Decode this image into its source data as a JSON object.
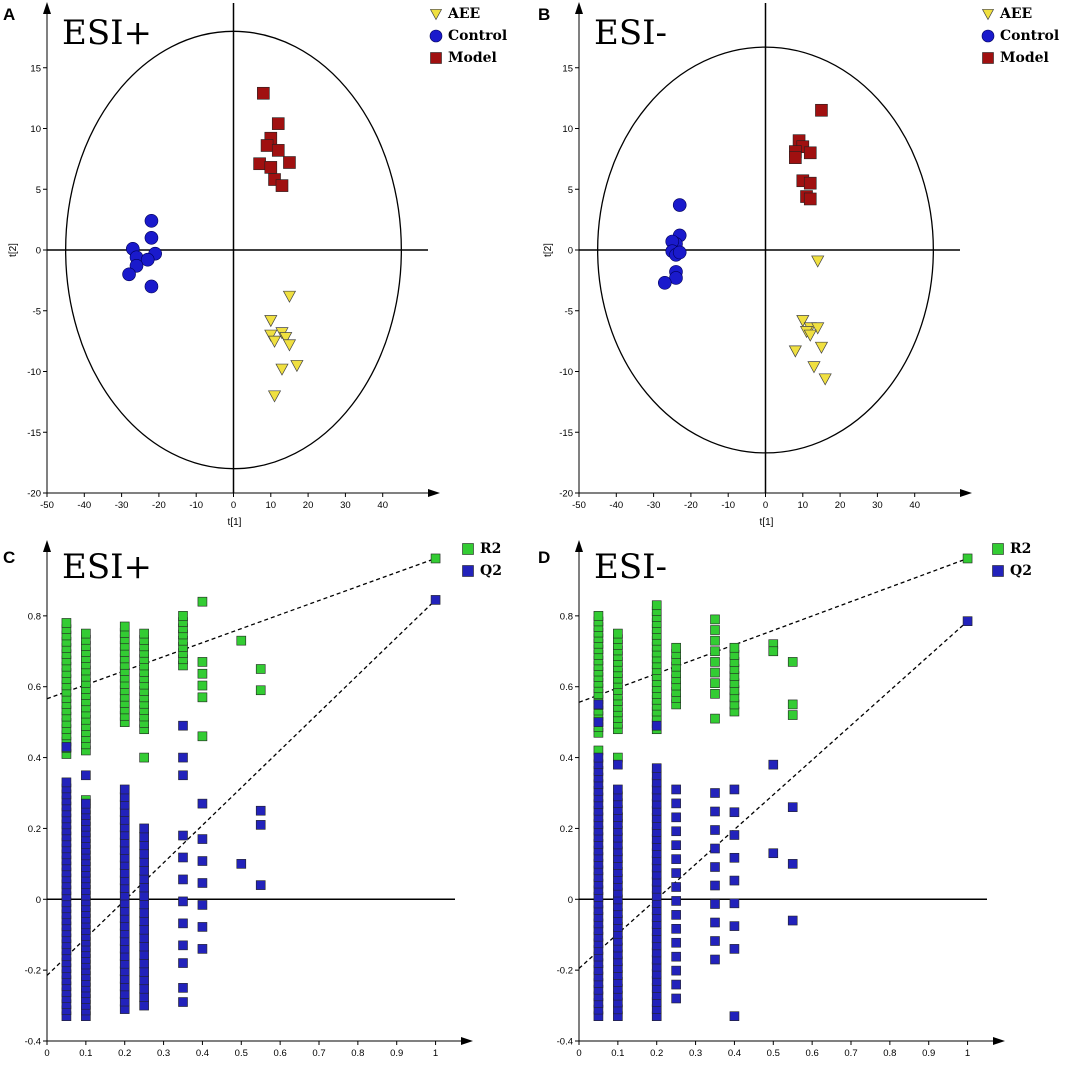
{
  "figure": {
    "colors": {
      "AEE": "#f0e040",
      "Control": "#1a1acc",
      "Model": "#a01010",
      "R2": "#33cc33",
      "Q2": "#2222bb"
    }
  },
  "chart_data": [
    {
      "id": "A",
      "panel_label": "A",
      "type": "scatter",
      "title": "ESI+",
      "xlabel": "t[1]",
      "ylabel": "t[2]",
      "xlim": [
        -50,
        50
      ],
      "ylim": [
        -20,
        20
      ],
      "xticks": [
        -50,
        -40,
        -30,
        -20,
        -10,
        0,
        10,
        20,
        30,
        40
      ],
      "yticks": [
        -20,
        -15,
        -10,
        -5,
        0,
        5,
        10,
        15
      ],
      "ellipse": {
        "rx": 45,
        "ry": 18
      },
      "legend": [
        "AEE",
        "Control",
        "Model"
      ],
      "series": [
        {
          "name": "AEE",
          "marker": "triangle",
          "points": [
            [
              15,
              -3.8
            ],
            [
              10,
              -5.8
            ],
            [
              13,
              -6.8
            ],
            [
              14,
              -7.2
            ],
            [
              15,
              -7.8
            ],
            [
              10,
              -7
            ],
            [
              11,
              -7.5
            ],
            [
              17,
              -9.5
            ],
            [
              13,
              -9.8
            ],
            [
              11,
              -12
            ]
          ]
        },
        {
          "name": "Control",
          "marker": "circle",
          "points": [
            [
              -22,
              2.4
            ],
            [
              -22,
              1
            ],
            [
              -27,
              0.1
            ],
            [
              -26,
              -0.6
            ],
            [
              -21,
              -0.3
            ],
            [
              -23,
              -0.8
            ],
            [
              -26,
              -1.3
            ],
            [
              -28,
              -2
            ],
            [
              -22,
              -3
            ]
          ]
        },
        {
          "name": "Model",
          "marker": "square",
          "points": [
            [
              8,
              12.9
            ],
            [
              12,
              10.4
            ],
            [
              10,
              9.2
            ],
            [
              9,
              8.6
            ],
            [
              12,
              8.2
            ],
            [
              7,
              7.1
            ],
            [
              10,
              6.8
            ],
            [
              15,
              7.2
            ],
            [
              11,
              5.8
            ],
            [
              13,
              5.3
            ]
          ]
        }
      ]
    },
    {
      "id": "B",
      "panel_label": "B",
      "type": "scatter",
      "title": "ESI-",
      "xlabel": "t[1]",
      "ylabel": "t[2]",
      "xlim": [
        -50,
        50
      ],
      "ylim": [
        -20,
        20
      ],
      "xticks": [
        -50,
        -40,
        -30,
        -20,
        -10,
        0,
        10,
        20,
        30,
        40
      ],
      "yticks": [
        -20,
        -15,
        -10,
        -5,
        0,
        5,
        10,
        15
      ],
      "ellipse": {
        "rx": 45,
        "ry": 16.7
      },
      "legend": [
        "AEE",
        "Control",
        "Model"
      ],
      "series": [
        {
          "name": "AEE",
          "marker": "triangle",
          "points": [
            [
              14,
              -0.9
            ],
            [
              10,
              -5.8
            ],
            [
              12,
              -6.4
            ],
            [
              14,
              -6.4
            ],
            [
              11,
              -6.7
            ],
            [
              12,
              -7
            ],
            [
              15,
              -8
            ],
            [
              8,
              -8.3
            ],
            [
              13,
              -9.6
            ],
            [
              16,
              -10.6
            ]
          ]
        },
        {
          "name": "Control",
          "marker": "circle",
          "points": [
            [
              -23,
              3.7
            ],
            [
              -23,
              1.2
            ],
            [
              -24,
              0.5
            ],
            [
              -25,
              0.7
            ],
            [
              -25,
              -0.1
            ],
            [
              -24,
              -0.4
            ],
            [
              -23,
              -0.2
            ],
            [
              -24,
              -1.8
            ],
            [
              -24,
              -2.3
            ],
            [
              -27,
              -2.7
            ]
          ]
        },
        {
          "name": "Model",
          "marker": "square",
          "points": [
            [
              15,
              11.5
            ],
            [
              9,
              9
            ],
            [
              10,
              8.5
            ],
            [
              8,
              8.1
            ],
            [
              12,
              8
            ],
            [
              8,
              7.6
            ],
            [
              10,
              5.7
            ],
            [
              12,
              5.5
            ],
            [
              11,
              4.4
            ],
            [
              12,
              4.2
            ]
          ]
        }
      ]
    },
    {
      "id": "C",
      "panel_label": "C",
      "type": "scatter",
      "title": "ESI+",
      "xlabel": "",
      "ylabel": "",
      "xlim": [
        0,
        1.05
      ],
      "ylim": [
        -0.4,
        1
      ],
      "xticks": [
        "0",
        "0.1",
        "0.2",
        "0.3",
        "0.4",
        "0.5",
        "0.6",
        "0.7",
        "0.8",
        "0.9",
        "1"
      ],
      "yticks": [
        "-0.4",
        "-0.2",
        "0",
        "0.2",
        "0.4",
        "0.6",
        "0.8"
      ],
      "legend": [
        "R2",
        "Q2"
      ],
      "lines": [
        {
          "name": "R2",
          "x": [
            0,
            1
          ],
          "y": [
            0.566,
            0.962
          ]
        },
        {
          "name": "Q2",
          "x": [
            0,
            1
          ],
          "y": [
            -0.215,
            0.845
          ]
        }
      ],
      "series": [
        {
          "name": "R2",
          "marker": "square",
          "columns": [
            {
              "x": 0.05,
              "range": [
                0.41,
                0.78
              ],
              "n": 22
            },
            {
              "x": 0.1,
              "range": [
                0.42,
                0.75
              ],
              "n": 20,
              "extra": [
                0.28
              ]
            },
            {
              "x": 0.2,
              "range": [
                0.5,
                0.77
              ],
              "n": 16
            },
            {
              "x": 0.25,
              "range": [
                0.48,
                0.75
              ],
              "n": 16,
              "extra": [
                0.4
              ]
            },
            {
              "x": 0.35,
              "range": [
                0.66,
                0.8
              ],
              "n": 9
            },
            {
              "x": 0.4,
              "range": [
                0.57,
                0.67
              ],
              "n": 4,
              "extra": [
                0.84,
                0.46
              ]
            }
          ],
          "points": [
            [
              0.5,
              0.73
            ],
            [
              0.55,
              0.65
            ],
            [
              0.55,
              0.59
            ],
            [
              1,
              0.962
            ]
          ]
        },
        {
          "name": "Q2",
          "marker": "square",
          "columns": [
            {
              "x": 0.05,
              "range": [
                -0.33,
                0.33
              ],
              "n": 40,
              "extra": [
                0.43
              ]
            },
            {
              "x": 0.1,
              "range": [
                -0.33,
                0.27
              ],
              "n": 38,
              "extra": [
                0.35
              ]
            },
            {
              "x": 0.2,
              "range": [
                -0.31,
                0.31
              ],
              "n": 30
            },
            {
              "x": 0.25,
              "range": [
                -0.3,
                0.2
              ],
              "n": 22
            },
            {
              "x": 0.35,
              "range": [
                -0.13,
                0.18
              ],
              "n": 6,
              "extra": [
                0.49,
                0.4,
                0.35,
                -0.18,
                -0.25,
                -0.29
              ]
            },
            {
              "x": 0.4,
              "range": [
                -0.14,
                0.17
              ],
              "n": 6,
              "extra": [
                0.27
              ]
            }
          ],
          "points": [
            [
              0.5,
              0.1
            ],
            [
              0.55,
              0.25
            ],
            [
              0.55,
              0.21
            ],
            [
              0.55,
              0.04
            ],
            [
              1,
              0.845
            ]
          ]
        }
      ]
    },
    {
      "id": "D",
      "panel_label": "D",
      "type": "scatter",
      "title": "ESI-",
      "xlabel": "",
      "ylabel": "",
      "xlim": [
        0,
        1.05
      ],
      "ylim": [
        -0.4,
        1
      ],
      "xticks": [
        "0",
        "0.1",
        "0.2",
        "0.3",
        "0.4",
        "0.5",
        "0.6",
        "0.7",
        "0.8",
        "0.9",
        "1"
      ],
      "yticks": [
        "-0.4",
        "-0.2",
        "0",
        "0.2",
        "0.4",
        "0.6",
        "0.8"
      ],
      "legend": [
        "R2",
        "Q2"
      ],
      "lines": [
        {
          "name": "R2",
          "x": [
            0,
            1
          ],
          "y": [
            0.556,
            0.962
          ]
        },
        {
          "name": "Q2",
          "x": [
            0,
            1
          ],
          "y": [
            -0.195,
            0.785
          ]
        }
      ],
      "series": [
        {
          "name": "R2",
          "marker": "square",
          "columns": [
            {
              "x": 0.05,
              "range": [
                0.47,
                0.8
              ],
              "n": 22,
              "extra": [
                0.42
              ]
            },
            {
              "x": 0.1,
              "range": [
                0.48,
                0.75
              ],
              "n": 18,
              "extra": [
                0.4,
                0.23
              ]
            },
            {
              "x": 0.2,
              "range": [
                0.48,
                0.83
              ],
              "n": 22
            },
            {
              "x": 0.25,
              "range": [
                0.55,
                0.71
              ],
              "n": 10
            },
            {
              "x": 0.35,
              "range": [
                0.58,
                0.79
              ],
              "n": 8,
              "extra": [
                0.51
              ]
            },
            {
              "x": 0.4,
              "range": [
                0.53,
                0.71
              ],
              "n": 10
            }
          ],
          "points": [
            [
              0.5,
              0.72
            ],
            [
              0.5,
              0.7
            ],
            [
              0.55,
              0.67
            ],
            [
              0.55,
              0.55
            ],
            [
              0.55,
              0.52
            ],
            [
              1,
              0.962
            ]
          ]
        },
        {
          "name": "Q2",
          "marker": "square",
          "columns": [
            {
              "x": 0.05,
              "range": [
                -0.33,
                0.4
              ],
              "n": 40,
              "extra": [
                0.55,
                0.5
              ]
            },
            {
              "x": 0.1,
              "range": [
                -0.33,
                0.31
              ],
              "n": 34,
              "extra": [
                0.38
              ]
            },
            {
              "x": 0.2,
              "range": [
                -0.33,
                0.37
              ],
              "n": 36,
              "extra": [
                0.49
              ]
            },
            {
              "x": 0.25,
              "range": [
                -0.28,
                0.31
              ],
              "n": 16
            },
            {
              "x": 0.35,
              "range": [
                -0.17,
                0.3
              ],
              "n": 10
            },
            {
              "x": 0.4,
              "range": [
                -0.14,
                0.31
              ],
              "n": 8,
              "extra": [
                -0.33
              ]
            }
          ],
          "points": [
            [
              0.5,
              0.38
            ],
            [
              0.5,
              0.13
            ],
            [
              0.55,
              0.26
            ],
            [
              0.55,
              0.1
            ],
            [
              0.55,
              -0.06
            ],
            [
              1,
              0.785
            ]
          ]
        }
      ]
    }
  ]
}
